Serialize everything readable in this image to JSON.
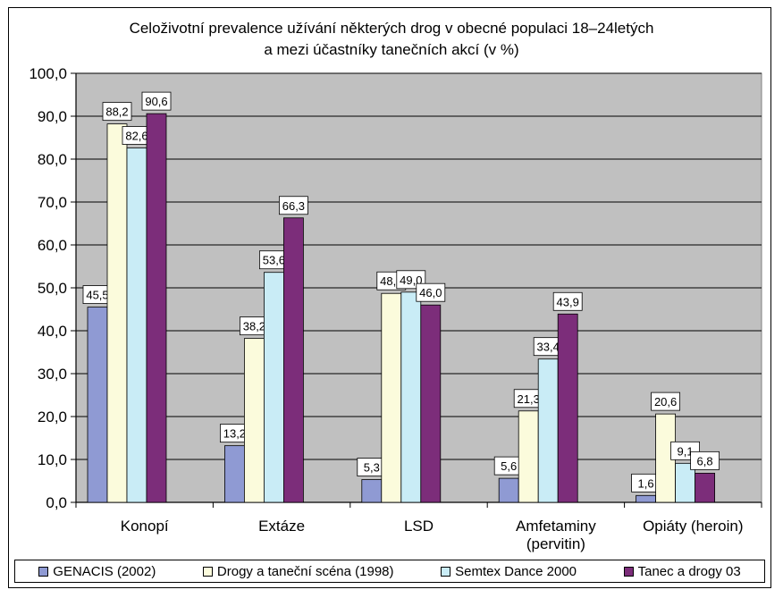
{
  "chart_data": {
    "type": "bar",
    "title_lines": [
      "Celoživotní prevalence užívání některých drog v obecné populaci 18–24letých",
      "a mezi účastníky tanečních akcí (v %)"
    ],
    "categories": [
      [
        "Konopí"
      ],
      [
        "Extáze"
      ],
      [
        "LSD"
      ],
      [
        "Amfetaminy",
        "(pervitin)"
      ],
      [
        "Opiáty (heroin)"
      ]
    ],
    "series": [
      {
        "name": "GENACIS (2002)",
        "color": "#8f9ad3",
        "values": [
          45.5,
          13.2,
          5.3,
          5.6,
          1.6
        ],
        "labels": [
          "45,5",
          "13,2",
          "5,3",
          "5,6",
          "1,6"
        ]
      },
      {
        "name": "Drogy a taneční scéna (1998)",
        "color": "#fbfbdc",
        "values": [
          88.2,
          38.2,
          48.7,
          21.3,
          20.6
        ],
        "labels": [
          "88,2",
          "38,2",
          "48,7",
          "21,3",
          "20,6"
        ]
      },
      {
        "name": "Semtex Dance 2000",
        "color": "#c9ecf6",
        "values": [
          82.6,
          53.6,
          49.0,
          33.4,
          9.1
        ],
        "labels": [
          "82,6",
          "53,6",
          "49,0",
          "33,4",
          "9,1"
        ]
      },
      {
        "name": "Tanec a drogy 03",
        "color": "#7c2d7a",
        "values": [
          90.6,
          66.3,
          46.0,
          43.9,
          6.8
        ],
        "labels": [
          "90,6",
          "66,3",
          "46,0",
          "43,9",
          "6,8"
        ]
      }
    ],
    "ylim": [
      0,
      100
    ],
    "yticks": [
      "0,0",
      "10,0",
      "20,0",
      "30,0",
      "40,0",
      "50,0",
      "60,0",
      "70,0",
      "80,0",
      "90,0",
      "100,0"
    ],
    "grid": true,
    "plot_background": "#c0c0c0",
    "legend_position": "bottom"
  }
}
